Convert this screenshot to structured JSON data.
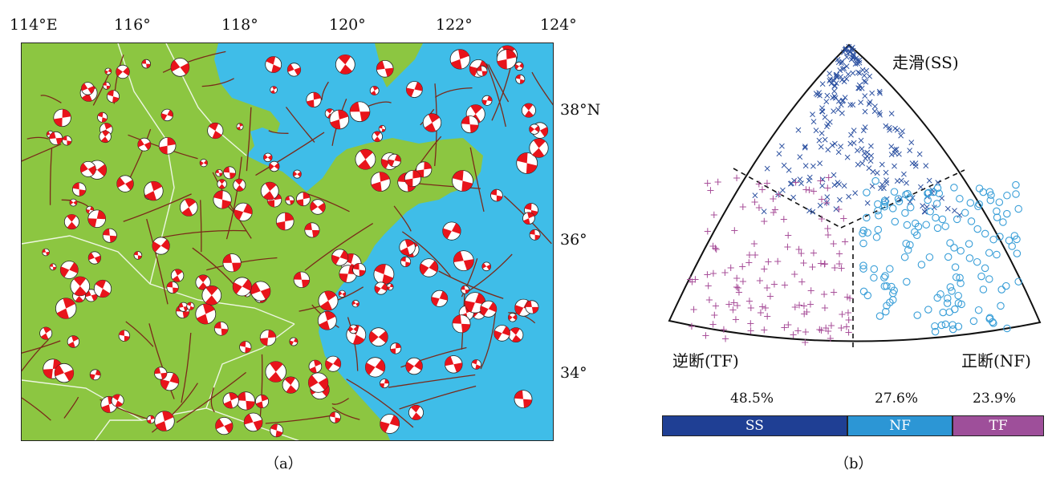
{
  "map": {
    "lon_labels": [
      "114°E",
      "116°",
      "118°",
      "120°",
      "122°",
      "124°"
    ],
    "lat_labels": [
      "38°N",
      "36°",
      "34°"
    ],
    "caption": "（a）",
    "colors": {
      "land": "#8cc641",
      "sea": "#3fbde8",
      "fault": "#7a2a1a",
      "border": "#ffffff",
      "beachball": "#e8141b"
    }
  },
  "triangle": {
    "labels": {
      "ss": "走滑(SS)",
      "tf": "逆断(TF)",
      "nf": "正断(NF)"
    },
    "colors": {
      "ss": "#2a4fa0",
      "nf": "#3a9fd8",
      "tf": "#a8509a"
    },
    "caption": "（b）"
  },
  "chart_data": {
    "type": "bar",
    "categories": [
      "SS",
      "NF",
      "TF"
    ],
    "values": [
      48.5,
      27.6,
      23.9
    ],
    "value_labels": [
      "48.5%",
      "27.6%",
      "23.9%"
    ],
    "colors": [
      "#1f3f94",
      "#2c96d5",
      "#9e4f9a"
    ]
  }
}
